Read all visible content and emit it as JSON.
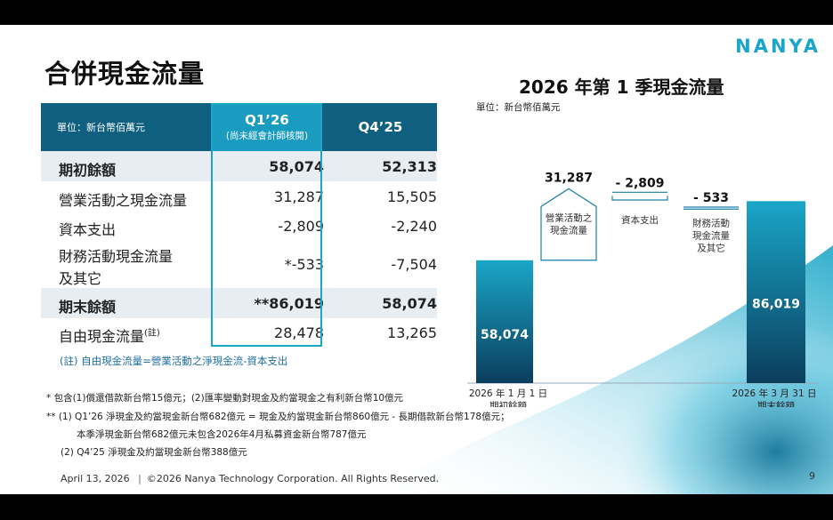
{
  "title": "合併現金流量",
  "logo": "NANYA",
  "table": {
    "unit": "單位：新台幣佰萬元",
    "col_q1": "Q1’26",
    "col_q1_sub": "(尚未經會計師核閱)",
    "col_q4": "Q4’25",
    "rows": [
      {
        "label": "期初餘額",
        "q1": "58,074",
        "q4": "52,313"
      },
      {
        "label": "營業活動之現金流量",
        "q1": "31,287",
        "q4": "15,505"
      },
      {
        "label": "資本支出",
        "q1": "-2,809",
        "q4": "-2,240"
      },
      {
        "label": "財務活動現金流量",
        "label2": "及其它",
        "q1": "*-533",
        "q4": "-7,504"
      },
      {
        "label": "期末餘額",
        "q1": "**86,019",
        "q4": "58,074"
      },
      {
        "label": "自由現金流量",
        "sup": "(註)",
        "q1": "28,478",
        "q4": "13,265"
      }
    ],
    "footnote": "(註) 自由現金流量=營業活動之淨現金流-資本支出"
  },
  "notes": {
    "n1": "* 包含(1)償還借款新台幣15億元；(2)匯率變動對現金及約當現金之有利新台幣10億元",
    "n2": "**  (1) Q1’26 淨現金及約當現金新台幣682億元 = 現金及約當現金新台幣860億元 - 長期借款新台幣178億元；",
    "n3": "本季淨現金新台幣682億元未包含2026年4月私募資金新台幣787億元",
    "n4": "(2) Q4’25 淨現金及約當現金新台幣388億元"
  },
  "footer": {
    "date": "April 13, 2026",
    "copyright": "©2026 Nanya Technology Corporation. All Rights Reserved.",
    "page": "9"
  },
  "chart_title": "2026 年第 1 季現金流量",
  "chart_unit": "單位：新台幣佰萬元",
  "chart_data": {
    "type": "bar",
    "subtype": "waterfall",
    "unit": "單位：新台幣佰萬元",
    "start": {
      "value": 58074,
      "label": "58,074",
      "axis_label": "2026 年 1 月 1 日",
      "axis_label2": "期初餘額"
    },
    "steps": [
      {
        "value": 31287,
        "label": "31,287",
        "desc": [
          "營業活動之",
          "現金流量"
        ]
      },
      {
        "value": -2809,
        "label": "- 2,809",
        "desc": [
          "資本支出"
        ]
      },
      {
        "value": -533,
        "label": "- 533",
        "desc": [
          "財務活動",
          "現金流量",
          "及其它"
        ]
      }
    ],
    "end": {
      "value": 86019,
      "label": "86,019",
      "axis_label": "2026 年 3 月 31 日",
      "axis_label2": "期末餘額"
    },
    "colors": {
      "bar_top": "#1aa6c8",
      "bar_bottom": "#0b3d5c",
      "outline": "#1a7fa8"
    }
  }
}
